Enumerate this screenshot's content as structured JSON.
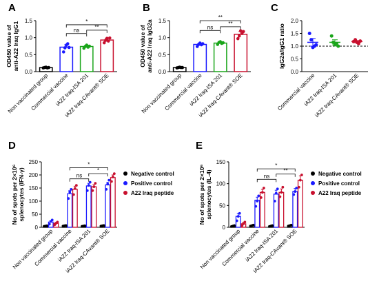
{
  "chart_data": [
    {
      "id": "A",
      "letter": "A",
      "type": "bar",
      "ylabel_lines": [
        "OD450 value of",
        "anti-A22 Iraq IgG1"
      ],
      "ylim": [
        0,
        1.5
      ],
      "yticks": [
        "0.0",
        "0.5",
        "1.0",
        "1.5"
      ],
      "categories": [
        "Non vaccinated group",
        "Commercial vaccine",
        "iA22 Iraq-ISA 201",
        "iA22 Iraq-CAvant® SOE"
      ],
      "colors": [
        "#000000",
        "#1a1aff",
        "#1aa51a",
        "#c8102e"
      ],
      "values": [
        0.12,
        0.72,
        0.74,
        0.93
      ],
      "errors": [
        0.02,
        0.07,
        0.04,
        0.05
      ],
      "points": [
        [
          0.11,
          0.12,
          0.13,
          0.11,
          0.12
        ],
        [
          0.58,
          0.7,
          0.78,
          0.82,
          0.71
        ],
        [
          0.69,
          0.74,
          0.78,
          0.72,
          0.75
        ],
        [
          0.85,
          0.92,
          0.98,
          0.9,
          0.99
        ]
      ],
      "significance": [
        {
          "from": 1,
          "to": 3,
          "label": "*",
          "level": 1.38
        },
        {
          "from": 1,
          "to": 2,
          "label": "ns",
          "level": 1.12
        },
        {
          "from": 2,
          "to": 3,
          "label": "**",
          "level": 1.22
        }
      ]
    },
    {
      "id": "B",
      "letter": "B",
      "type": "bar",
      "ylabel_lines": [
        "OD450 value of",
        "anti-A22 Iraq IgG2a"
      ],
      "ylim": [
        0,
        1.5
      ],
      "yticks": [
        "0.0",
        "0.5",
        "1.0",
        "1.5"
      ],
      "categories": [
        "Non vaccinated group",
        "Commercial vaccine",
        "iA22 Iraq-ISA 201",
        "iA22 Iraq-CAvant® SOE"
      ],
      "colors": [
        "#000000",
        "#1a1aff",
        "#1aa51a",
        "#c8102e"
      ],
      "values": [
        0.12,
        0.8,
        0.84,
        1.1
      ],
      "errors": [
        0.02,
        0.04,
        0.04,
        0.08
      ],
      "points": [
        [
          0.11,
          0.12,
          0.13,
          0.12,
          0.12
        ],
        [
          0.74,
          0.8,
          0.84,
          0.79,
          0.82
        ],
        [
          0.8,
          0.86,
          0.88,
          0.83,
          0.85
        ],
        [
          0.97,
          1.05,
          1.2,
          1.12,
          1.18
        ]
      ],
      "significance": [
        {
          "from": 1,
          "to": 3,
          "label": "**",
          "level": 1.5
        },
        {
          "from": 1,
          "to": 2,
          "label": "ns",
          "level": 1.21
        },
        {
          "from": 2,
          "to": 3,
          "label": "**",
          "level": 1.32
        }
      ]
    },
    {
      "id": "C",
      "letter": "C",
      "type": "scatter",
      "ylabel_lines": [
        "IgG2a/IgG1 ratio"
      ],
      "ylim": [
        0,
        2.0
      ],
      "yticks": [
        "0.0",
        "0.5",
        "1.0",
        "1.5",
        "2.0"
      ],
      "reference_line": 1.0,
      "categories": [
        "Commercial vaccine",
        "iA22 Iraq-ISA 201",
        "iA22 Iraq-CAvant® SOE"
      ],
      "colors": [
        "#1a1aff",
        "#1aa51a",
        "#c8102e"
      ],
      "values": [
        1.15,
        1.15,
        1.18
      ],
      "errors": [
        0.15,
        0.1,
        0.04
      ],
      "points": [
        [
          1.5,
          1.25,
          0.95,
          1.0,
          1.05
        ],
        [
          1.4,
          1.15,
          1.05,
          1.1,
          1.0
        ],
        [
          1.18,
          1.25,
          1.15,
          1.1,
          1.2
        ]
      ]
    },
    {
      "id": "D",
      "letter": "D",
      "type": "grouped-bar",
      "ylabel_lines": [
        "No of spots per 2×10⁶",
        "splenocytes (IFN-γ)"
      ],
      "ylim": [
        0,
        250
      ],
      "yticks": [
        "0",
        "50",
        "100",
        "150",
        "200",
        "250"
      ],
      "categories": [
        "Non vaccinated group",
        "Commercial vaccine",
        "iA22 Iraq-ISA 201",
        "iA22 Iraq-CAvant® SOE"
      ],
      "series": [
        {
          "name": "Negative control",
          "color": "#000000",
          "values": [
            5,
            6,
            5,
            6
          ],
          "errors": [
            1,
            1,
            1,
            1
          ],
          "points": [
            [
              4,
              5,
              6
            ],
            [
              5,
              6,
              7
            ],
            [
              4,
              5,
              6
            ],
            [
              5,
              6,
              7
            ]
          ]
        },
        {
          "name": "Positive control",
          "color": "#1a1aff",
          "values": [
            20,
            128,
            158,
            162
          ],
          "errors": [
            5,
            12,
            10,
            10
          ],
          "points": [
            [
              12,
              22,
              28
            ],
            [
              110,
              135,
              145
            ],
            [
              140,
              160,
              172
            ],
            [
              145,
              165,
              180
            ]
          ]
        },
        {
          "name": "A22 Iraq peptide",
          "color": "#c8102e",
          "values": [
            15,
            145,
            155,
            190
          ],
          "errors": [
            4,
            12,
            8,
            10
          ],
          "points": [
            [
              10,
              15,
              20
            ],
            [
              125,
              148,
              160
            ],
            [
              140,
              155,
              168
            ],
            [
              175,
              192,
              205
            ]
          ]
        }
      ],
      "significance": [
        {
          "from": 1,
          "to": 3,
          "label": "*",
          "level": 228
        },
        {
          "from": 1,
          "to": 2,
          "label": "ns",
          "level": 185
        },
        {
          "from": 2,
          "to": 3,
          "label": "*",
          "level": 205
        }
      ]
    },
    {
      "id": "E",
      "letter": "E",
      "type": "grouped-bar",
      "ylabel_lines": [
        "No of spots per 2×10⁶",
        "splenocytes (IL-4)"
      ],
      "ylim": [
        0,
        150
      ],
      "yticks": [
        "0",
        "50",
        "100",
        "150"
      ],
      "categories": [
        "Non vaccinated group",
        "Commercial vaccine",
        "iA22 Iraq-ISA 201",
        "iA22 Iraq-CAvant® SOE"
      ],
      "series": [
        {
          "name": "Negative control",
          "color": "#000000",
          "values": [
            3,
            4,
            3,
            4
          ],
          "errors": [
            1,
            1,
            1,
            1
          ],
          "points": [
            [
              2,
              3,
              4
            ],
            [
              3,
              4,
              5
            ],
            [
              2,
              3,
              4
            ],
            [
              3,
              4,
              5
            ]
          ]
        },
        {
          "name": "Positive control",
          "color": "#1a1aff",
          "values": [
            25,
            62,
            76,
            82
          ],
          "errors": [
            7,
            7,
            9,
            7
          ],
          "points": [
            [
              15,
              25,
              32
            ],
            [
              48,
              60,
              72
            ],
            [
              60,
              78,
              88
            ],
            [
              75,
              82,
              90
            ]
          ]
        },
        {
          "name": "A22 Iraq peptide",
          "color": "#c8102e",
          "values": [
            8,
            80,
            80,
            108
          ],
          "errors": [
            3,
            7,
            8,
            10
          ],
          "points": [
            [
              4,
              8,
              12
            ],
            [
              68,
              80,
              90
            ],
            [
              70,
              80,
              92
            ],
            [
              92,
              108,
              120
            ]
          ]
        }
      ],
      "significance": [
        {
          "from": 1,
          "to": 3,
          "label": "*",
          "level": 134
        },
        {
          "from": 1,
          "to": 2,
          "label": "ns",
          "level": 110
        },
        {
          "from": 2,
          "to": 3,
          "label": "**",
          "level": 122
        }
      ]
    }
  ]
}
